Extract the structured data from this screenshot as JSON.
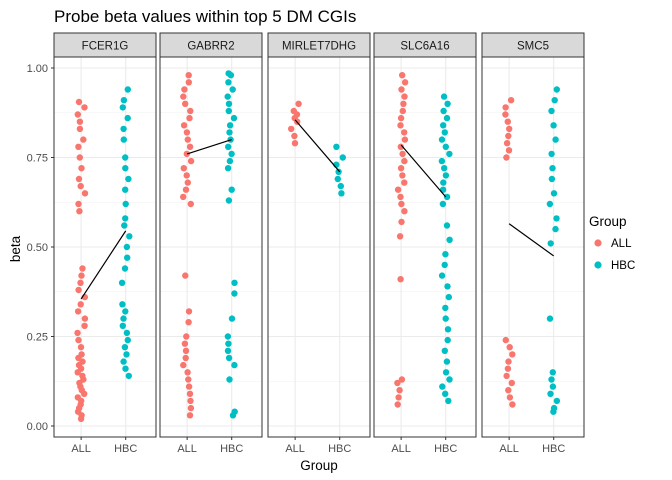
{
  "chart_data": {
    "type": "scatter",
    "title": "Probe beta values within top 5 DM CGIs",
    "xlabel": "Group",
    "ylabel": "beta",
    "ylim": [
      0,
      1
    ],
    "yticks": [
      "0.00",
      "0.25",
      "0.50",
      "0.75",
      "1.00"
    ],
    "categories": [
      "ALL",
      "HBC"
    ],
    "grid": true,
    "legend": {
      "title": "Group",
      "position": "right",
      "items": [
        {
          "label": "ALL",
          "color": "#F8766D"
        },
        {
          "label": "HBC",
          "color": "#00BFC4"
        }
      ]
    },
    "facets": [
      {
        "name": "FCER1G",
        "mean_line": {
          "ALL": 0.355,
          "HBC": 0.545
        },
        "points": {
          "ALL": [
            0.02,
            0.03,
            0.04,
            0.05,
            0.06,
            0.07,
            0.08,
            0.09,
            0.1,
            0.11,
            0.12,
            0.13,
            0.14,
            0.15,
            0.16,
            0.17,
            0.18,
            0.19,
            0.2,
            0.22,
            0.24,
            0.26,
            0.28,
            0.3,
            0.32,
            0.34,
            0.36,
            0.38,
            0.4,
            0.42,
            0.44,
            0.6,
            0.62,
            0.65,
            0.67,
            0.69,
            0.72,
            0.75,
            0.78,
            0.8,
            0.83,
            0.85,
            0.87,
            0.89,
            0.905
          ],
          "HBC": [
            0.14,
            0.16,
            0.18,
            0.2,
            0.22,
            0.24,
            0.26,
            0.28,
            0.3,
            0.32,
            0.34,
            0.4,
            0.44,
            0.47,
            0.5,
            0.53,
            0.56,
            0.58,
            0.62,
            0.66,
            0.69,
            0.72,
            0.75,
            0.8,
            0.83,
            0.86,
            0.89,
            0.91,
            0.94
          ]
        }
      },
      {
        "name": "GABRR2",
        "mean_line": {
          "ALL": 0.76,
          "HBC": 0.8
        },
        "points": {
          "ALL": [
            0.03,
            0.05,
            0.07,
            0.09,
            0.11,
            0.13,
            0.15,
            0.17,
            0.19,
            0.21,
            0.23,
            0.25,
            0.29,
            0.32,
            0.42,
            0.62,
            0.64,
            0.66,
            0.68,
            0.7,
            0.72,
            0.74,
            0.76,
            0.78,
            0.8,
            0.82,
            0.84,
            0.86,
            0.88,
            0.9,
            0.92,
            0.94,
            0.96,
            0.98
          ],
          "HBC": [
            0.03,
            0.04,
            0.13,
            0.17,
            0.19,
            0.21,
            0.23,
            0.25,
            0.3,
            0.37,
            0.4,
            0.63,
            0.66,
            0.72,
            0.74,
            0.76,
            0.78,
            0.8,
            0.82,
            0.84,
            0.86,
            0.88,
            0.9,
            0.92,
            0.94,
            0.96,
            0.98,
            0.985
          ]
        }
      },
      {
        "name": "MIRLET7DHG",
        "mean_line": {
          "ALL": 0.855,
          "HBC": 0.71
        },
        "points": {
          "ALL": [
            0.79,
            0.81,
            0.83,
            0.85,
            0.86,
            0.87,
            0.88,
            0.9
          ],
          "HBC": [
            0.65,
            0.67,
            0.69,
            0.71,
            0.73,
            0.75,
            0.78
          ]
        }
      },
      {
        "name": "SLC6A16",
        "mean_line": {
          "ALL": 0.785,
          "HBC": 0.64
        },
        "points": {
          "ALL": [
            0.06,
            0.08,
            0.1,
            0.12,
            0.13,
            0.41,
            0.53,
            0.57,
            0.6,
            0.62,
            0.64,
            0.66,
            0.68,
            0.7,
            0.72,
            0.74,
            0.76,
            0.78,
            0.8,
            0.82,
            0.84,
            0.86,
            0.88,
            0.9,
            0.92,
            0.94,
            0.96,
            0.98
          ],
          "HBC": [
            0.07,
            0.09,
            0.11,
            0.13,
            0.15,
            0.18,
            0.21,
            0.24,
            0.27,
            0.3,
            0.33,
            0.36,
            0.39,
            0.42,
            0.45,
            0.48,
            0.52,
            0.56,
            0.62,
            0.64,
            0.66,
            0.68,
            0.7,
            0.72,
            0.74,
            0.76,
            0.78,
            0.8,
            0.82,
            0.84,
            0.86,
            0.88,
            0.9,
            0.92
          ]
        }
      },
      {
        "name": "SMC5",
        "mean_line": {
          "ALL": 0.565,
          "HBC": 0.475
        },
        "points": {
          "ALL": [
            0.06,
            0.08,
            0.1,
            0.12,
            0.14,
            0.16,
            0.18,
            0.2,
            0.22,
            0.24,
            0.75,
            0.77,
            0.79,
            0.81,
            0.83,
            0.85,
            0.87,
            0.89,
            0.91
          ],
          "HBC": [
            0.04,
            0.05,
            0.07,
            0.09,
            0.11,
            0.13,
            0.15,
            0.3,
            0.51,
            0.55,
            0.58,
            0.62,
            0.65,
            0.69,
            0.72,
            0.76,
            0.8,
            0.84,
            0.88,
            0.91,
            0.94
          ]
        }
      }
    ]
  }
}
